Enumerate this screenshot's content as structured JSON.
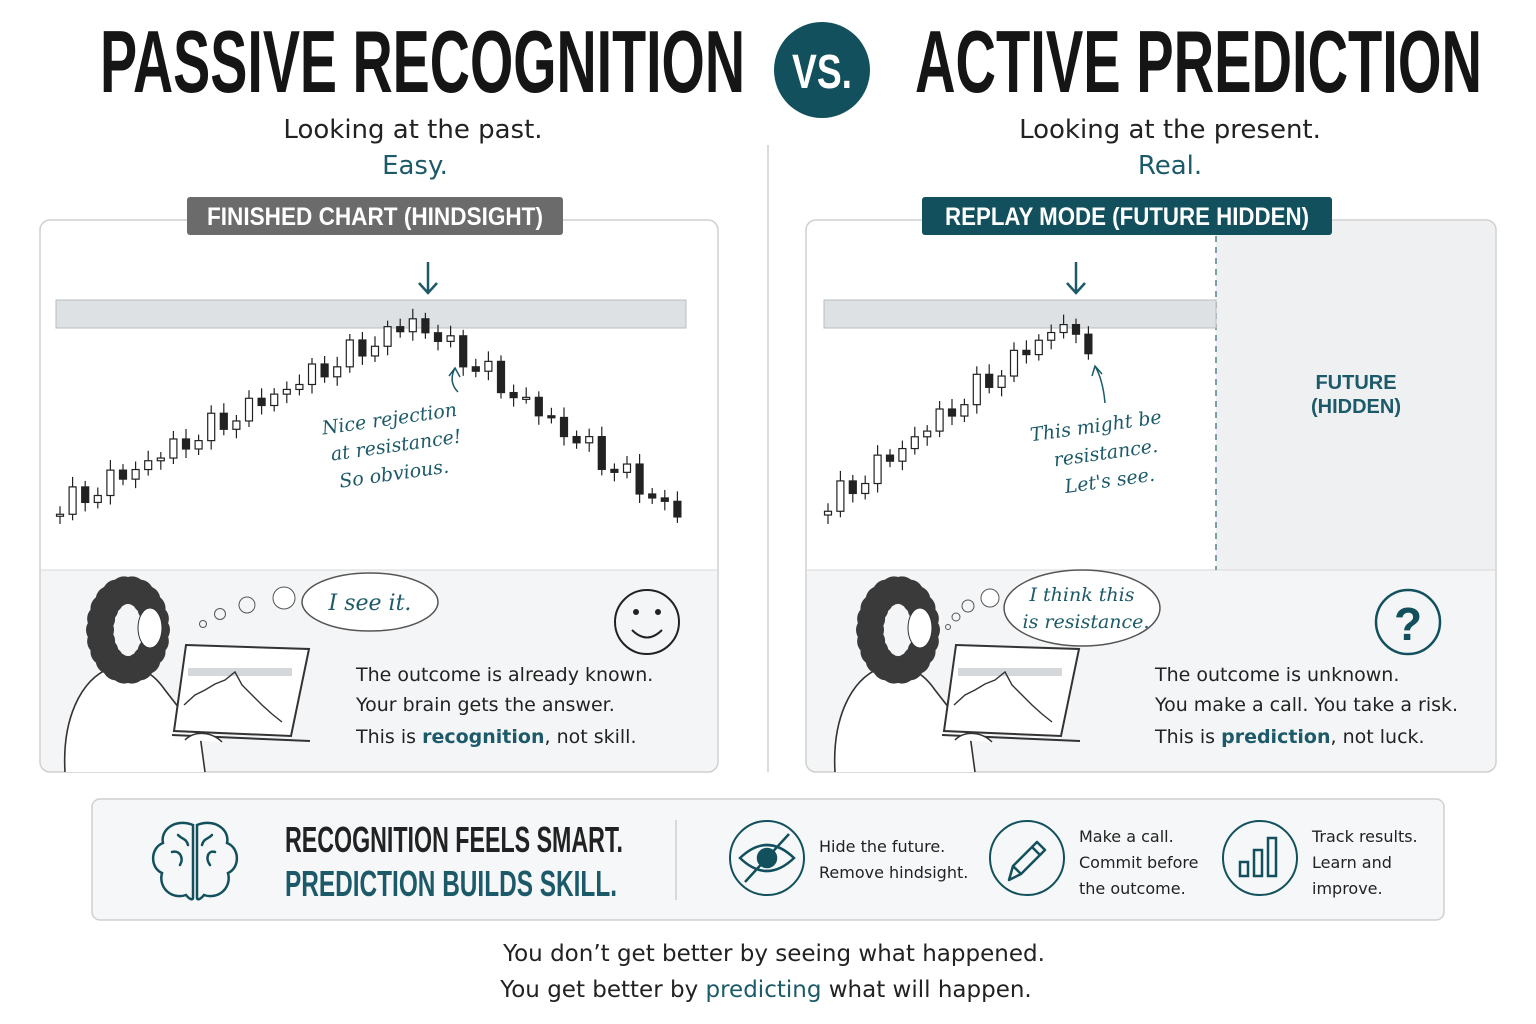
{
  "left": {
    "title": "PASSIVE RECOGNITION",
    "subtitle": "Looking at the past.",
    "verdict": "Easy.",
    "panel_label": "FINISHED CHART (HINDSIGHT)",
    "annotation": [
      "Nice rejection",
      "at resistance!",
      "So obvious."
    ],
    "thought": [
      "I see it."
    ],
    "caption": [
      "The outcome is already known.",
      "Your brain gets the answer.",
      {
        "before": "This is ",
        "highlight": "recognition",
        "after": ", not skill."
      }
    ]
  },
  "vs": "VS.",
  "right": {
    "title": "ACTIVE PREDICTION",
    "subtitle": "Looking at the present.",
    "verdict": "Real.",
    "panel_label": "REPLAY MODE (FUTURE HIDDEN)",
    "hidden_label": [
      "FUTURE",
      "(HIDDEN)"
    ],
    "annotation": [
      "This might be",
      "resistance.",
      "Let's see."
    ],
    "thought": [
      "I think this",
      "is resistance."
    ],
    "icon": "?",
    "caption": [
      "The outcome is unknown.",
      "You make a call. You take a risk.",
      {
        "before": "This is ",
        "highlight": "prediction",
        "after": ", not luck."
      }
    ]
  },
  "summary": {
    "headline": [
      "RECOGNITION FEELS SMART.",
      "PREDICTION BUILDS SKILL."
    ],
    "steps": [
      {
        "lines": [
          "Hide the future.",
          "Remove hindsight."
        ]
      },
      {
        "lines": [
          "Make a call.",
          "Commit before",
          "the outcome."
        ]
      },
      {
        "lines": [
          "Track results.",
          "Learn and",
          "improve."
        ]
      }
    ]
  },
  "footer": {
    "line1": "You don’t get better by seeing what happened.",
    "line2": {
      "before": "You get better by ",
      "highlight": "predicting",
      "after": " what will happen."
    }
  }
}
